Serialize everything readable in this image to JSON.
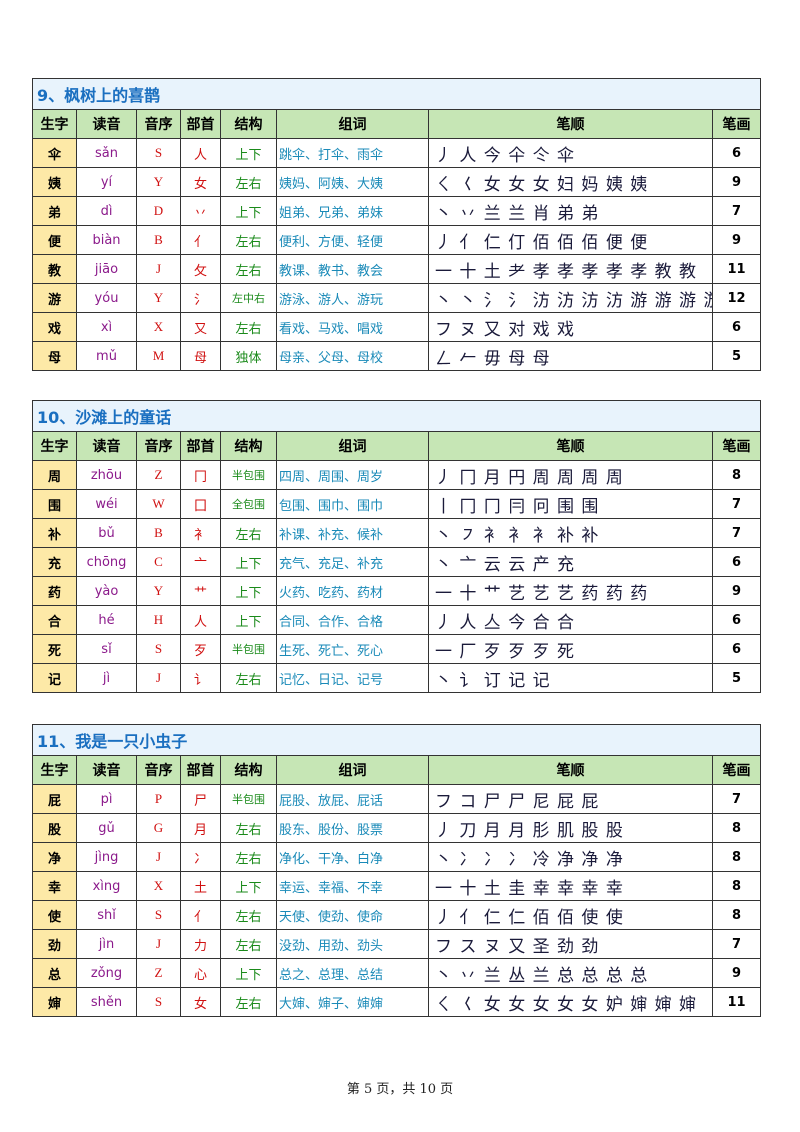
{
  "headers": [
    "生字",
    "读音",
    "音序",
    "部首",
    "结构",
    "组词",
    "笔顺",
    "笔画"
  ],
  "sections": [
    {
      "title": "9、枫树上的喜鹊",
      "rows": [
        {
          "char": "伞",
          "pinyin": "sǎn",
          "index": "S",
          "radical": "人",
          "structure": "上下",
          "words": "跳伞、打伞、雨伞",
          "strokes": "丿 人 今 仐 仒 伞",
          "count": "6"
        },
        {
          "char": "姨",
          "pinyin": "yí",
          "index": "Y",
          "radical": "女",
          "structure": "左右",
          "words": "姨妈、阿姨、大姨",
          "strokes": "ㄑ 𡿨 女 女 女 妇 妈 姨 姨",
          "count": "9"
        },
        {
          "char": "弟",
          "pinyin": "dì",
          "index": "D",
          "radical": "丷",
          "structure": "上下",
          "words": "姐弟、兄弟、弟妹",
          "strokes": "丶 丷 兰 兰 肖 弟 弟",
          "count": "7"
        },
        {
          "char": "便",
          "pinyin": "biàn",
          "index": "B",
          "radical": "亻",
          "structure": "左右",
          "words": "便利、方便、轻便",
          "strokes": "丿 亻 仁 仃 佰 佰 佰 便 便",
          "count": "9"
        },
        {
          "char": "教",
          "pinyin": "jiāo",
          "index": "J",
          "radical": "攵",
          "structure": "左右",
          "words": "教课、教书、教会",
          "strokes": "一 十 土 耂 孝 孝 孝 孝 孝 教 教",
          "count": "11"
        },
        {
          "char": "游",
          "pinyin": "yóu",
          "index": "Y",
          "radical": "氵",
          "structure": "左中右",
          "words": "游泳、游人、游玩",
          "strokes": "丶 丶 氵 氵 汸 汸 汸 汸 游 游 游 游",
          "count": "12"
        },
        {
          "char": "戏",
          "pinyin": "xì",
          "index": "X",
          "radical": "又",
          "structure": "左右",
          "words": "看戏、马戏、唱戏",
          "strokes": "フ ヌ 又 对 戏 戏",
          "count": "6"
        },
        {
          "char": "母",
          "pinyin": "mǔ",
          "index": "M",
          "radical": "母",
          "structure": "独体",
          "words": "母亲、父母、母校",
          "strokes": "ㄥ 𠂉 毋 母 母",
          "count": "5"
        }
      ]
    },
    {
      "title": "10、沙滩上的童话",
      "rows": [
        {
          "char": "周",
          "pinyin": "zhōu",
          "index": "Z",
          "radical": "冂",
          "structure": "半包围",
          "words": "四周、周围、周岁",
          "strokes": "丿 冂 月 円 周 周 周 周",
          "count": "8"
        },
        {
          "char": "围",
          "pinyin": "wéi",
          "index": "W",
          "radical": "囗",
          "structure": "全包围",
          "words": "包围、围巾、围巾",
          "strokes": "丨 冂 冂 冃 冋 围 围",
          "count": "7"
        },
        {
          "char": "补",
          "pinyin": "bǔ",
          "index": "B",
          "radical": "衤",
          "structure": "左右",
          "words": "补课、补充、候补",
          "strokes": "丶 ㇇ 衤 衤 衤 补 补",
          "count": "7"
        },
        {
          "char": "充",
          "pinyin": "chōng",
          "index": "C",
          "radical": "亠",
          "structure": "上下",
          "words": "充气、充足、补充",
          "strokes": "丶 亠 云 云 产 充",
          "count": "6"
        },
        {
          "char": "药",
          "pinyin": "yào",
          "index": "Y",
          "radical": "艹",
          "structure": "上下",
          "words": "火药、吃药、药材",
          "strokes": "一 十 艹 艺 艺 艺 药 药 药",
          "count": "9"
        },
        {
          "char": "合",
          "pinyin": "hé",
          "index": "H",
          "radical": "人",
          "structure": "上下",
          "words": "合同、合作、合格",
          "strokes": "丿 人 亼 今 合 合",
          "count": "6"
        },
        {
          "char": "死",
          "pinyin": "sǐ",
          "index": "S",
          "radical": "歹",
          "structure": "半包围",
          "words": "生死、死亡、死心",
          "strokes": "一 厂 歹 歹 歹 死",
          "count": "6"
        },
        {
          "char": "记",
          "pinyin": "jì",
          "index": "J",
          "radical": "讠",
          "structure": "左右",
          "words": "记忆、日记、记号",
          "strokes": "丶 讠 订 记 记",
          "count": "5"
        }
      ]
    },
    {
      "title": "11、我是一只小虫子",
      "rows": [
        {
          "char": "屁",
          "pinyin": "pì",
          "index": "P",
          "radical": "尸",
          "structure": "半包围",
          "words": "屁股、放屁、屁话",
          "strokes": "フ コ 尸 尸 尼 屁 屁",
          "count": "7"
        },
        {
          "char": "股",
          "pinyin": "gǔ",
          "index": "G",
          "radical": "月",
          "structure": "左右",
          "words": "股东、股份、股票",
          "strokes": "丿 刀 月 月 肜 肌 股 股",
          "count": "8"
        },
        {
          "char": "净",
          "pinyin": "jìng",
          "index": "J",
          "radical": "冫",
          "structure": "左右",
          "words": "净化、干净、白净",
          "strokes": "丶 冫 冫 冫 冷 净 净 净",
          "count": "8"
        },
        {
          "char": "幸",
          "pinyin": "xìng",
          "index": "X",
          "radical": "土",
          "structure": "上下",
          "words": "幸运、幸福、不幸",
          "strokes": "一 十 土 圭 幸 幸 幸 幸",
          "count": "8"
        },
        {
          "char": "使",
          "pinyin": "shǐ",
          "index": "S",
          "radical": "亻",
          "structure": "左右",
          "words": "天使、使劲、使命",
          "strokes": "丿 亻 仁 仁 佰 佰 使 使",
          "count": "8"
        },
        {
          "char": "劲",
          "pinyin": "jìn",
          "index": "J",
          "radical": "力",
          "structure": "左右",
          "words": "没劲、用劲、劲头",
          "strokes": "フ ス ヌ 又 圣 劲 劲",
          "count": "7"
        },
        {
          "char": "总",
          "pinyin": "zǒng",
          "index": "Z",
          "radical": "心",
          "structure": "上下",
          "words": "总之、总理、总结",
          "strokes": "丶 丷 兰 丛 兰 总 总 总 总",
          "count": "9"
        },
        {
          "char": "婶",
          "pinyin": "shěn",
          "index": "S",
          "radical": "女",
          "structure": "左右",
          "words": "大婶、婶子、婶婶",
          "strokes": "ㄑ 𡿨 女 女 女 女 女 妒 婶 婶 婶",
          "count": "11"
        }
      ]
    }
  ],
  "footer": "第 5 页，共 10 页"
}
